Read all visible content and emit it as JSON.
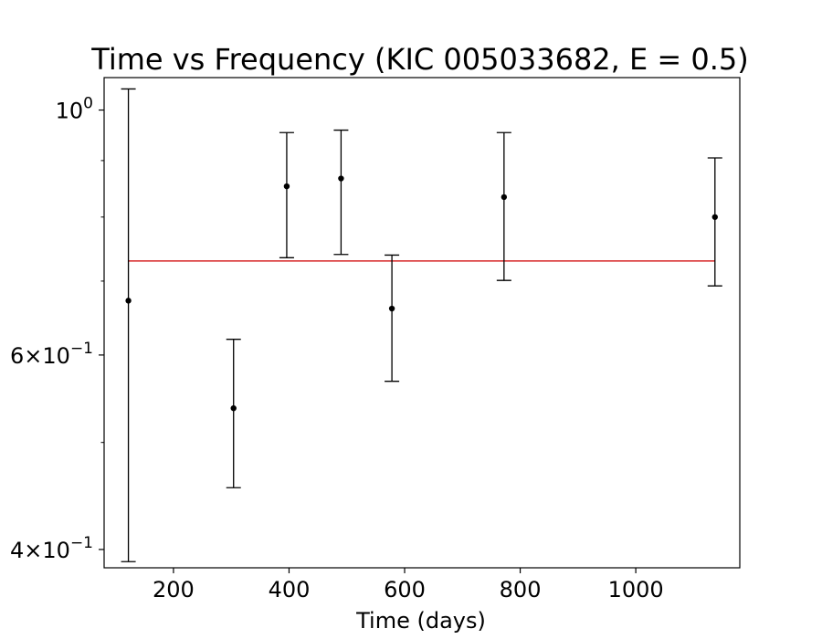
{
  "chart_data": {
    "type": "scatter",
    "title": "Time vs Frequency (KIC 005033682, E = 0.5)",
    "xlabel": "Time (days)",
    "ylabel": "",
    "xlim": [
      80,
      1180
    ],
    "ylim": [
      0.385,
      1.07
    ],
    "yscale": "log",
    "grid": false,
    "x_ticks": [
      200,
      400,
      600,
      800,
      1000
    ],
    "y_ticks": [
      {
        "value": 1.0,
        "base": "10",
        "exp": "0"
      },
      {
        "value": 0.6,
        "base": "6×10",
        "exp": "−1"
      },
      {
        "value": 0.4,
        "base": "4×10",
        "exp": "−1"
      }
    ],
    "series": [
      {
        "points": [
          {
            "x": 122,
            "y": 0.672,
            "ylow": 0.39,
            "yhigh": 1.045
          },
          {
            "x": 304,
            "y": 0.537,
            "ylow": 0.455,
            "yhigh": 0.62
          },
          {
            "x": 396,
            "y": 0.853,
            "ylow": 0.735,
            "yhigh": 0.954
          },
          {
            "x": 490,
            "y": 0.867,
            "ylow": 0.74,
            "yhigh": 0.959
          },
          {
            "x": 578,
            "y": 0.661,
            "ylow": 0.568,
            "yhigh": 0.739
          },
          {
            "x": 772,
            "y": 0.834,
            "ylow": 0.701,
            "yhigh": 0.954
          },
          {
            "x": 1137,
            "y": 0.8,
            "ylow": 0.693,
            "yhigh": 0.905
          }
        ]
      }
    ],
    "reference_line": {
      "x_start": 122,
      "x_end": 1137,
      "y": 0.73,
      "color": "#d62728"
    },
    "colors": {
      "points": "#000000",
      "error_bars": "#000000",
      "axes": "#000000"
    }
  }
}
